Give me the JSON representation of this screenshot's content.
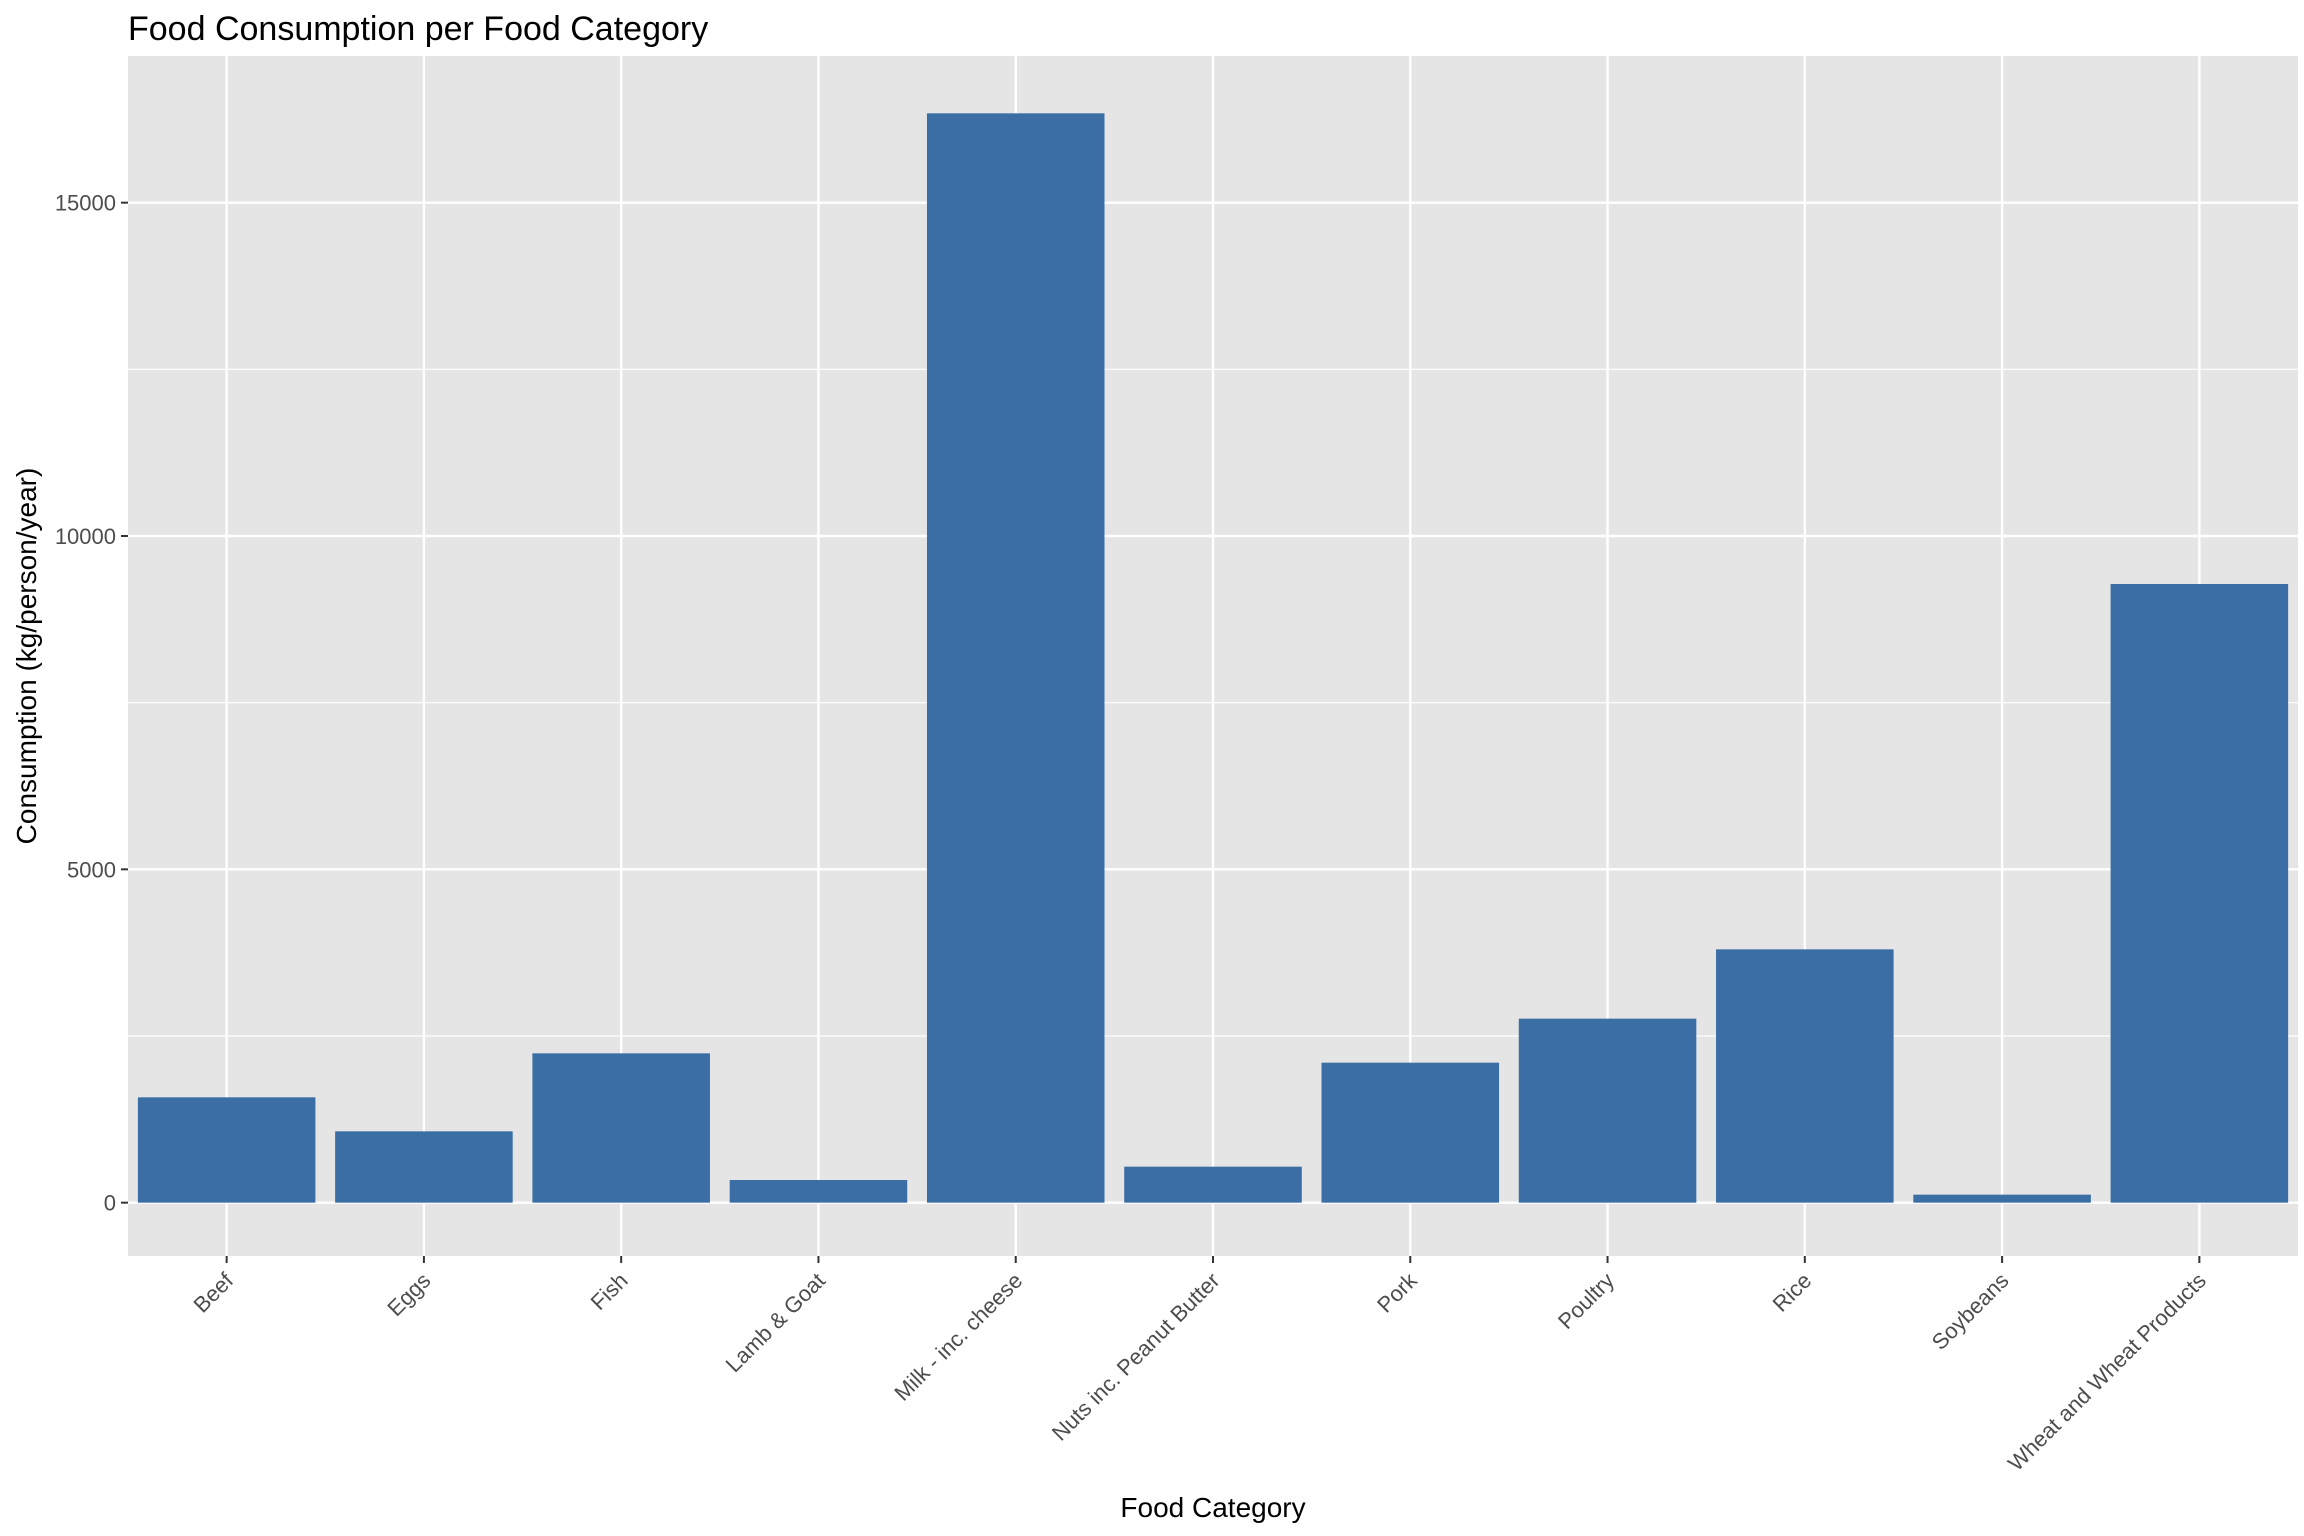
{
  "chart_data": {
    "type": "bar",
    "title": "Food Consumption per Food Category",
    "xlabel": "Food Category",
    "ylabel": "Consumption (kg/person/year)",
    "categories": [
      "Beef",
      "Eggs",
      "Fish",
      "Lamb & Goat",
      "Milk - inc. cheese",
      "Nuts inc. Peanut Butter",
      "Pork",
      "Poultry",
      "Rice",
      "Soybeans",
      "Wheat and Wheat Products"
    ],
    "values": [
      1580,
      1070,
      2240,
      340,
      16340,
      540,
      2100,
      2760,
      3800,
      120,
      9280
    ],
    "ylim": [
      -800,
      17200
    ],
    "yticks": [
      0,
      5000,
      10000,
      15000
    ],
    "ytick_labels": [
      "0",
      "5000",
      "10000",
      "15000"
    ],
    "grid": true,
    "colors": {
      "bar": "#3a6ea5",
      "panel": "#e5e5e5",
      "grid": "#ffffff",
      "tick_text": "#4d4d4d",
      "tick_mark": "#333333"
    }
  }
}
